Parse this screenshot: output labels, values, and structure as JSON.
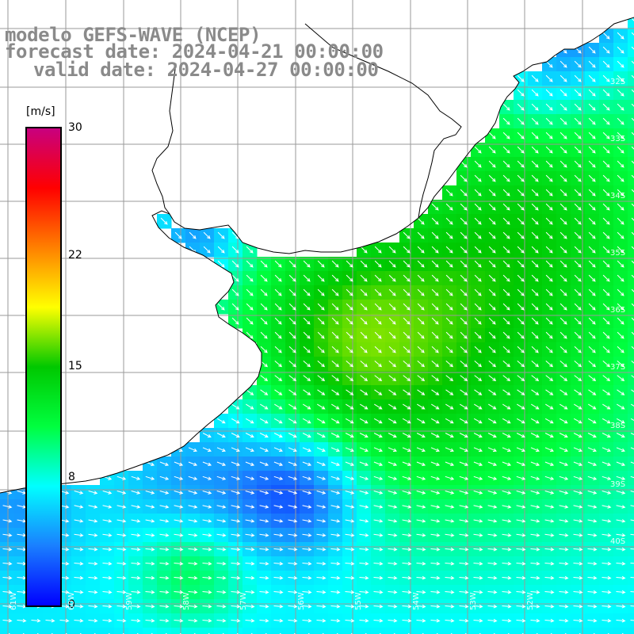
{
  "title": {
    "line1": "modelo GEFS-WAVE (NCEP)",
    "line2": "forecast date: 2024-04-21 00:00:00",
    "line3": "valid date: 2024-04-27 00:00:00"
  },
  "colorbar": {
    "unit_label": "[m/s]",
    "ticks": [
      {
        "value": 30,
        "label": "30"
      },
      {
        "value": 22,
        "label": "22"
      },
      {
        "value": 15,
        "label": "15"
      },
      {
        "value": 8,
        "label": "8"
      },
      {
        "value": 0,
        "label": "0"
      }
    ],
    "range": [
      0,
      30
    ],
    "colors": [
      "#0000ff",
      "#1a7fff",
      "#00ffff",
      "#00ff3f",
      "#00c800",
      "#ffff00",
      "#ff8000",
      "#ff0000",
      "#c8007f"
    ]
  },
  "map": {
    "variable": "wind speed and direction",
    "land_color": "#ffffff",
    "grid": true,
    "lat_labels": [
      "32S",
      "33S",
      "34S",
      "35S",
      "36S",
      "37S",
      "38S",
      "39S",
      "40S"
    ],
    "lon_labels": [
      "61W",
      "60W",
      "59W",
      "58W",
      "57W",
      "56W",
      "55W",
      "54W",
      "53W",
      "52W"
    ]
  }
}
